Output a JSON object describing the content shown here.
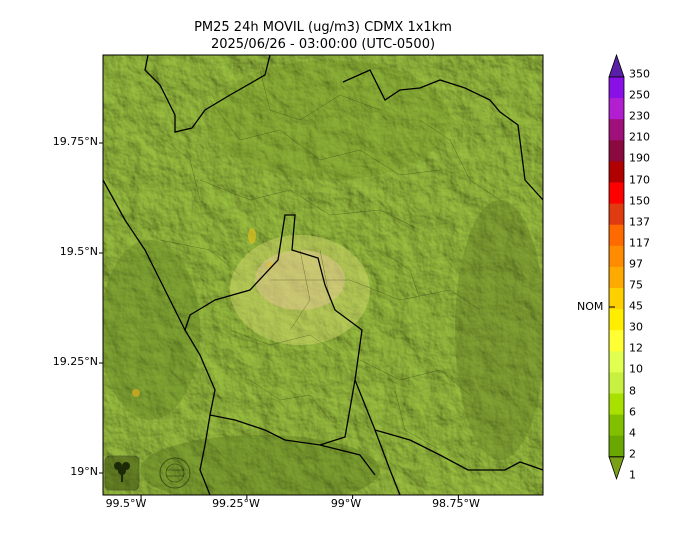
{
  "title_line1": "PM25 24h MOVIL (ug/m3) CDMX 1x1km",
  "title_line2": "2025/06/26 - 03:00:00 (UTC-0500)",
  "map": {
    "lon_range": [
      -99.59,
      -98.55
    ],
    "lat_range": [
      18.95,
      19.95
    ],
    "lat_ticks": [
      {
        "value": 19.75,
        "label": "19.75°N"
      },
      {
        "value": 19.5,
        "label": "19.5°N"
      },
      {
        "value": 19.25,
        "label": "19.25°N"
      },
      {
        "value": 19.0,
        "label": "19°N"
      }
    ],
    "lon_ticks": [
      {
        "value": -99.5,
        "label": "99.5°W"
      },
      {
        "value": -99.25,
        "label": "99.25°W"
      },
      {
        "value": -99.0,
        "label": "99°W"
      },
      {
        "value": -98.75,
        "label": "98.75°W"
      }
    ],
    "logos": [
      "SEDEMA",
      "CCA"
    ]
  },
  "colorbar": {
    "labels": [
      "350",
      "250",
      "230",
      "210",
      "190",
      "170",
      "150",
      "137",
      "117",
      "97",
      "75",
      "45",
      "30",
      "12",
      "10",
      "8",
      "6",
      "4",
      "2",
      "1"
    ],
    "colors": [
      "#5a1fa8",
      "#8a10e8",
      "#b21fd0",
      "#a0107a",
      "#8a0a40",
      "#b00000",
      "#ff0000",
      "#e03a10",
      "#ff6a00",
      "#ff8c00",
      "#ffaa00",
      "#ffd000",
      "#ffee00",
      "#ffff33",
      "#e0ff50",
      "#c8f040",
      "#a8e000",
      "#80c000",
      "#68a800",
      "#7aa018"
    ],
    "marker_label": "NOM"
  }
}
